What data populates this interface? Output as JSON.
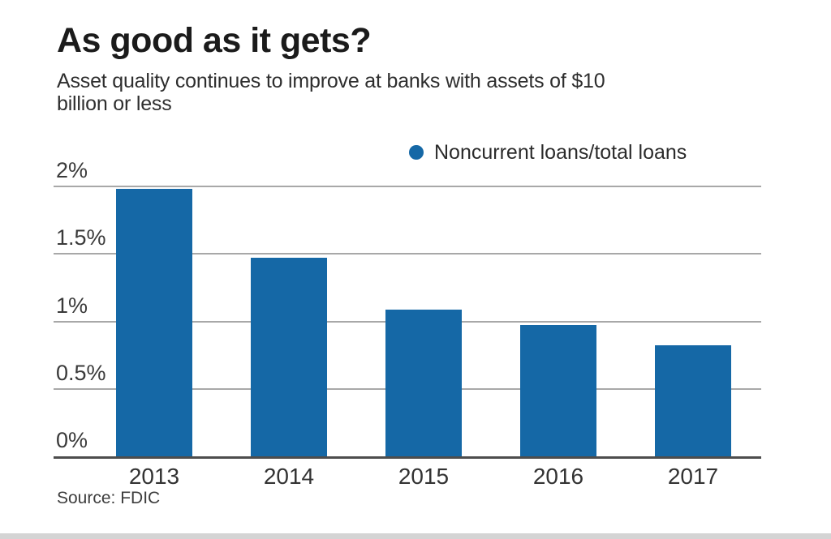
{
  "header": {
    "title": "As good as it gets?",
    "subtitle": "Asset quality continues to improve at banks with assets of $10\nbillion or less"
  },
  "legend": {
    "label": "Noncurrent loans/total loans"
  },
  "chart_data": {
    "type": "bar",
    "title": "As good as it gets?",
    "subtitle": "Asset quality continues to improve at banks with assets of $10 billion or less",
    "categories": [
      "2013",
      "2014",
      "2015",
      "2016",
      "2017"
    ],
    "series": [
      {
        "name": "Noncurrent loans/total loans",
        "values": [
          1.98,
          1.47,
          1.09,
          0.97,
          0.82
        ]
      }
    ],
    "unit": "percent",
    "ylim": [
      0,
      2
    ],
    "yticks": [
      {
        "label": "0%",
        "value": 0
      },
      {
        "label": "0.5%",
        "value": 0.5
      },
      {
        "label": "1%",
        "value": 1
      },
      {
        "label": "1.5%",
        "value": 1.5
      },
      {
        "label": "2%",
        "value": 2
      }
    ],
    "grid": true,
    "legend_position": "top-right",
    "colors": {
      "bar": "#1568A6",
      "gridline": "#a8a8a8",
      "baseline": "#4d4d4d",
      "tick_label": "#3a3a3a"
    }
  },
  "source": {
    "text": "Source: FDIC"
  }
}
